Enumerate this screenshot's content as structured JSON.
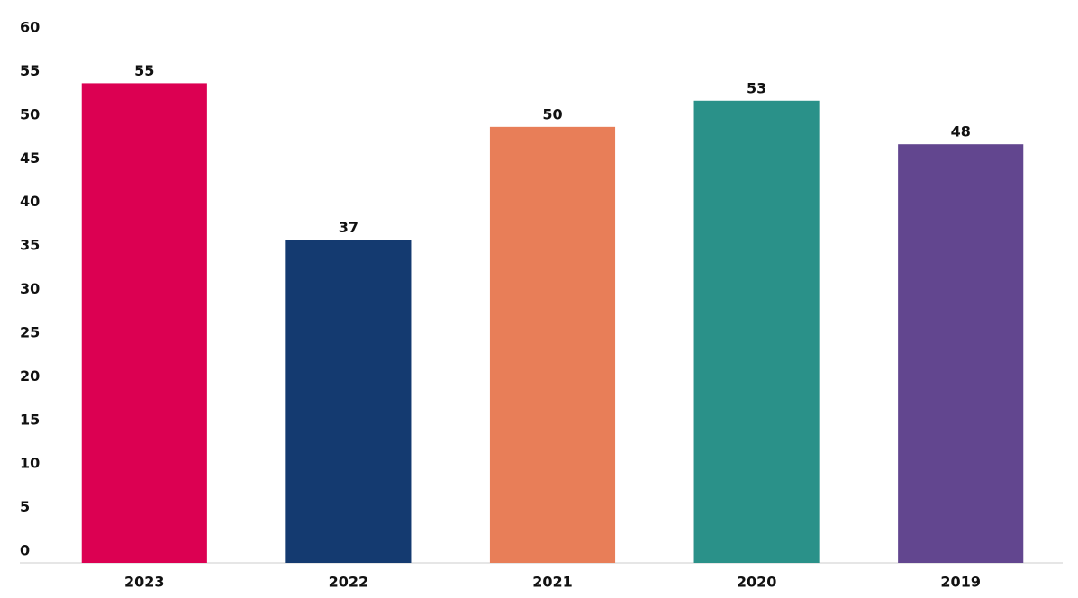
{
  "chart_data": {
    "type": "bar",
    "categories": [
      "2023",
      "2022",
      "2021",
      "2020",
      "2019"
    ],
    "values": [
      55,
      37,
      50,
      53,
      48
    ],
    "colors": [
      "#dc0052",
      "#143a70",
      "#e87e58",
      "#2a9189",
      "#62468f"
    ],
    "ylim": [
      0,
      60
    ],
    "yticks": [
      0,
      5,
      10,
      15,
      20,
      25,
      30,
      35,
      40,
      45,
      50,
      55,
      60
    ],
    "grid": false
  }
}
